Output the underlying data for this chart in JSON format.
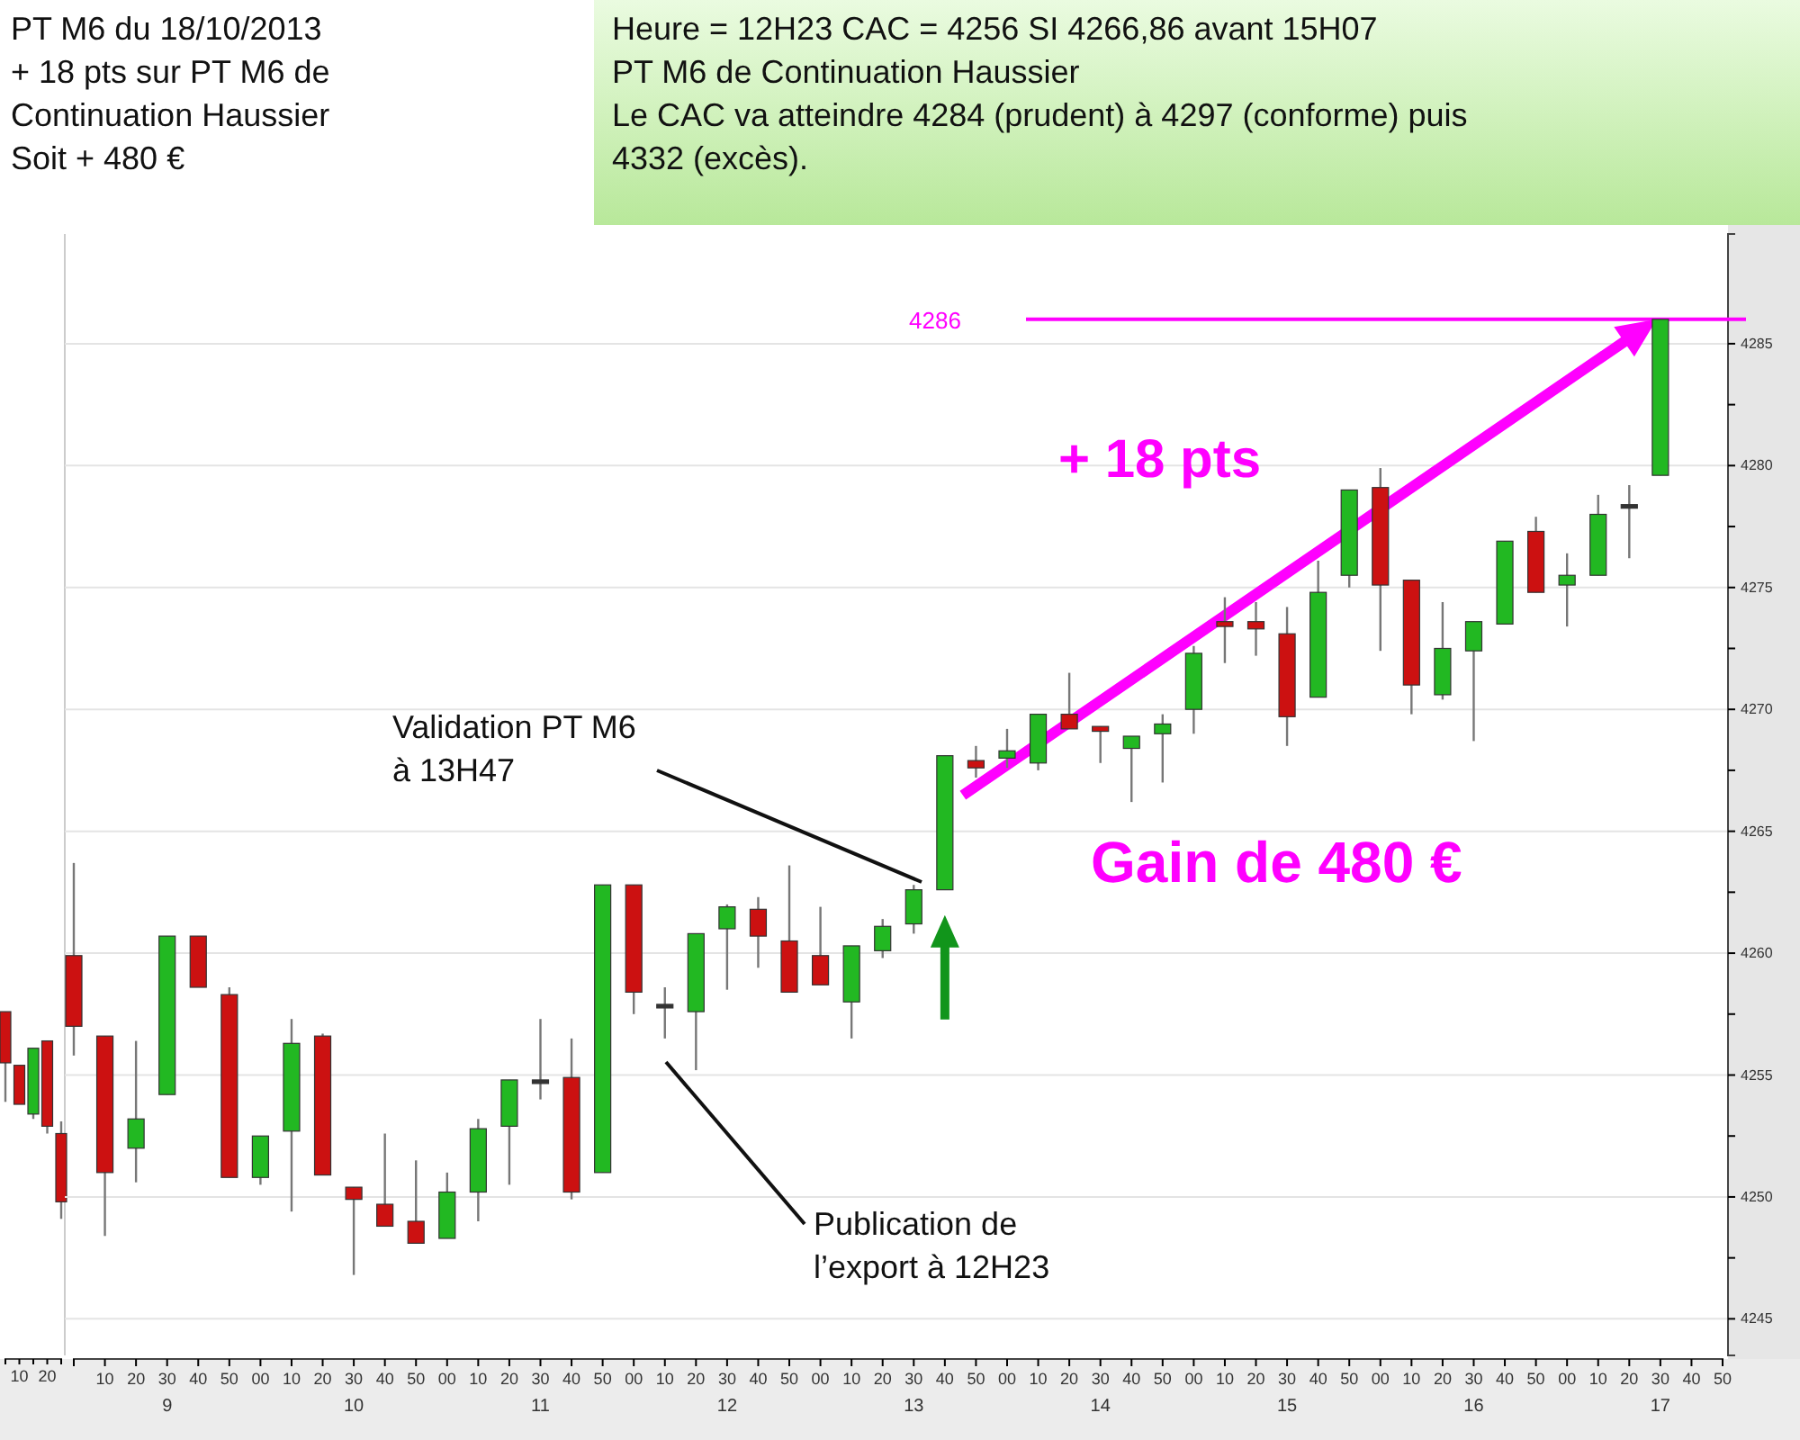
{
  "chart_data": [
    {
      "type": "candlestick",
      "categories": [
        null,
        "10",
        null,
        "20",
        null
      ],
      "ylim": [
        4243.5,
        4289.5
      ],
      "tick_labels": "x",
      "ohlc": [
        [
          4257.6,
          4257.6,
          4253.9,
          4255.5
        ],
        [
          4255.4,
          4255.4,
          4253.8,
          4253.8
        ],
        [
          4253.4,
          4256.1,
          4253.2,
          4256.1
        ],
        [
          4256.4,
          4256.4,
          4252.6,
          4252.9
        ],
        [
          4252.6,
          4253.1,
          4249.1,
          4249.8
        ]
      ],
      "colors": [
        "#cc1111",
        "#cc1111",
        "#22b822",
        "#cc1111",
        "#cc1111"
      ]
    },
    {
      "type": "candlestick",
      "title": "PT M6 du 18/10/2013\n+ 18 pts sur PT M6 de\nContinuation Haussier\nSoit +  480 €",
      "subtitle": "Heure = 12H23  CAC = 4256   SI 4266,86 avant  15H07\nPT M6 de Continuation Haussier\nLe CAC va atteindre 4284 (prudent) à 4297 (conforme) puis\n4332 (excès).",
      "categories": [
        null,
        "10",
        "20",
        "30\n9",
        "40",
        "50",
        "00",
        "10",
        "20",
        "30\n10",
        "40",
        "50",
        "00",
        "10",
        "20",
        "30\n11",
        "40",
        "50",
        "00",
        "10",
        "20",
        "30\n12",
        "40",
        "50",
        "00",
        "10",
        "20",
        "30\n13",
        "40",
        "50",
        "00",
        "10",
        "20",
        "30\n14",
        "40",
        "50",
        "00",
        "10",
        "20",
        "30\n15",
        "40",
        "50",
        "00",
        "10",
        "20",
        "30\n16",
        "40",
        "50",
        "00",
        "10",
        "20",
        "30\n17",
        "40",
        "50"
      ],
      "ohlc": [
        [
          4259.9,
          4263.7,
          4255.8,
          4257.0
        ],
        [
          4256.6,
          4256.6,
          4248.4,
          4251.0
        ],
        [
          4252.0,
          4256.4,
          4250.6,
          4253.2
        ],
        [
          4254.2,
          4260.7,
          4254.2,
          4260.7
        ],
        [
          4260.7,
          4260.7,
          4258.6,
          4258.6
        ],
        [
          4258.3,
          4258.6,
          4250.8,
          4250.8
        ],
        [
          4250.8,
          4252.5,
          4250.5,
          4252.5
        ],
        [
          4252.7,
          4257.3,
          4249.4,
          4256.3
        ],
        [
          4256.6,
          4256.7,
          4250.9,
          4250.9
        ],
        [
          4250.4,
          4250.4,
          4246.8,
          4249.9
        ],
        [
          4249.7,
          4252.6,
          4248.8,
          4248.8
        ],
        [
          4249.0,
          4251.5,
          4248.1,
          4248.1
        ],
        [
          4248.3,
          4251.0,
          4248.3,
          4250.2
        ],
        [
          4250.2,
          4253.2,
          4249.0,
          4252.8
        ],
        [
          4252.9,
          4254.8,
          4250.5,
          4254.8
        ],
        [
          4254.8,
          4257.3,
          4254.0,
          4254.8
        ],
        [
          4254.9,
          4256.5,
          4249.9,
          4250.2
        ],
        [
          4251.0,
          4262.8,
          4251.0,
          4262.8
        ],
        [
          4262.8,
          4262.8,
          4257.5,
          4258.4
        ],
        [
          4257.9,
          4258.6,
          4256.5,
          4257.9
        ],
        [
          4257.6,
          4260.8,
          4255.2,
          4260.8
        ],
        [
          4261.0,
          4262.0,
          4258.5,
          4261.9
        ],
        [
          4261.8,
          4262.3,
          4259.4,
          4260.7
        ],
        [
          4260.5,
          4263.6,
          4258.4,
          4258.4
        ],
        [
          4259.9,
          4261.9,
          4258.7,
          4258.7
        ],
        [
          4258.0,
          4260.3,
          4256.5,
          4260.3
        ],
        [
          4260.1,
          4261.4,
          4259.8,
          4261.1
        ],
        [
          4261.2,
          4262.8,
          4260.8,
          4262.6
        ],
        [
          4262.6,
          4268.1,
          4262.6,
          4268.1
        ],
        [
          4267.9,
          4268.5,
          4267.2,
          4267.6
        ],
        [
          4268.0,
          4269.2,
          4267.6,
          4268.3
        ],
        [
          4267.8,
          4269.8,
          4267.5,
          4269.8
        ],
        [
          4269.8,
          4271.5,
          4269.2,
          4269.2
        ],
        [
          4269.3,
          4269.3,
          4267.8,
          4269.1
        ],
        [
          4268.4,
          4268.9,
          4266.2,
          4268.9
        ],
        [
          4269.0,
          4269.8,
          4267.0,
          4269.4
        ],
        [
          4270.0,
          4272.6,
          4269.0,
          4272.3
        ],
        [
          4273.6,
          4274.6,
          4271.9,
          4273.4
        ],
        [
          4273.6,
          4274.4,
          4272.2,
          4273.3
        ],
        [
          4273.1,
          4274.2,
          4268.5,
          4269.7
        ],
        [
          4270.5,
          4276.1,
          4270.5,
          4274.8
        ],
        [
          4275.5,
          4279.0,
          4275.0,
          4279.0
        ],
        [
          4279.1,
          4279.9,
          4272.4,
          4275.1
        ],
        [
          4275.3,
          4275.3,
          4269.8,
          4271.0
        ],
        [
          4270.6,
          4274.4,
          4270.4,
          4272.5
        ],
        [
          4272.4,
          4273.6,
          4268.7,
          4273.6
        ],
        [
          4273.5,
          4276.9,
          4273.5,
          4276.9
        ],
        [
          4277.3,
          4277.9,
          4274.8,
          4274.8
        ],
        [
          4275.1,
          4276.4,
          4273.4,
          4275.5
        ],
        [
          4275.5,
          4278.8,
          4275.5,
          4278.0
        ],
        [
          4278.4,
          4279.2,
          4276.2,
          4278.4
        ],
        [
          4279.6,
          4286,
          4279.6,
          4286
        ],
        null,
        null
      ],
      "colors": [
        "#cc1111",
        "#cc1111",
        "#22b822",
        "#22b822",
        "#cc1111",
        "#cc1111",
        "#22b822",
        "#22b822",
        "#cc1111",
        "#cc1111",
        "#cc1111",
        "#cc1111",
        "#22b822",
        "#22b822",
        "#22b822",
        "#333333",
        "#cc1111",
        "#22b822",
        "#cc1111",
        "#333333",
        "#22b822",
        "#22b822",
        "#cc1111",
        "#cc1111",
        "#cc1111",
        "#22b822",
        "#22b822",
        "#22b822",
        "#22b822",
        "#cc1111",
        "#22b822",
        "#22b822",
        "#cc1111",
        "#cc1111",
        "#22b822",
        "#22b822",
        "#22b822",
        "#cc1111",
        "#cc1111",
        "#cc1111",
        "#22b822",
        "#22b822",
        "#cc1111",
        "#cc1111",
        "#22b822",
        "#22b822",
        "#22b822",
        "#cc1111",
        "#22b822",
        "#22b822",
        "#333333",
        "#22b822",
        null,
        null
      ],
      "ylim": [
        4243.5,
        4289.5
      ],
      "yticks": [
        4245,
        {
          "value": 4247.5,
          "label": null
        },
        4250,
        {
          "value": 4252.5,
          "label": null
        },
        4255,
        {
          "value": 4257.5,
          "label": null
        },
        4260,
        {
          "value": 4262.5,
          "label": null
        },
        4265,
        {
          "value": 4267.5,
          "label": null
        },
        4270,
        {
          "value": 4272.5,
          "label": null
        },
        4275,
        {
          "value": 4277.5,
          "label": null
        },
        4280,
        {
          "value": 4282.5,
          "label": null
        },
        4285
      ],
      "grid": "y",
      "ref_lines": [
        {
          "axis": "y",
          "value": 4286,
          "label": "4286",
          "color": "#ff00ff"
        }
      ],
      "annotations": [
        "Validation PT M6\nà 13H47",
        "Publication de\nl’export à 12H23",
        "+ 18 pts",
        "Gain de 480 €"
      ]
    }
  ]
}
